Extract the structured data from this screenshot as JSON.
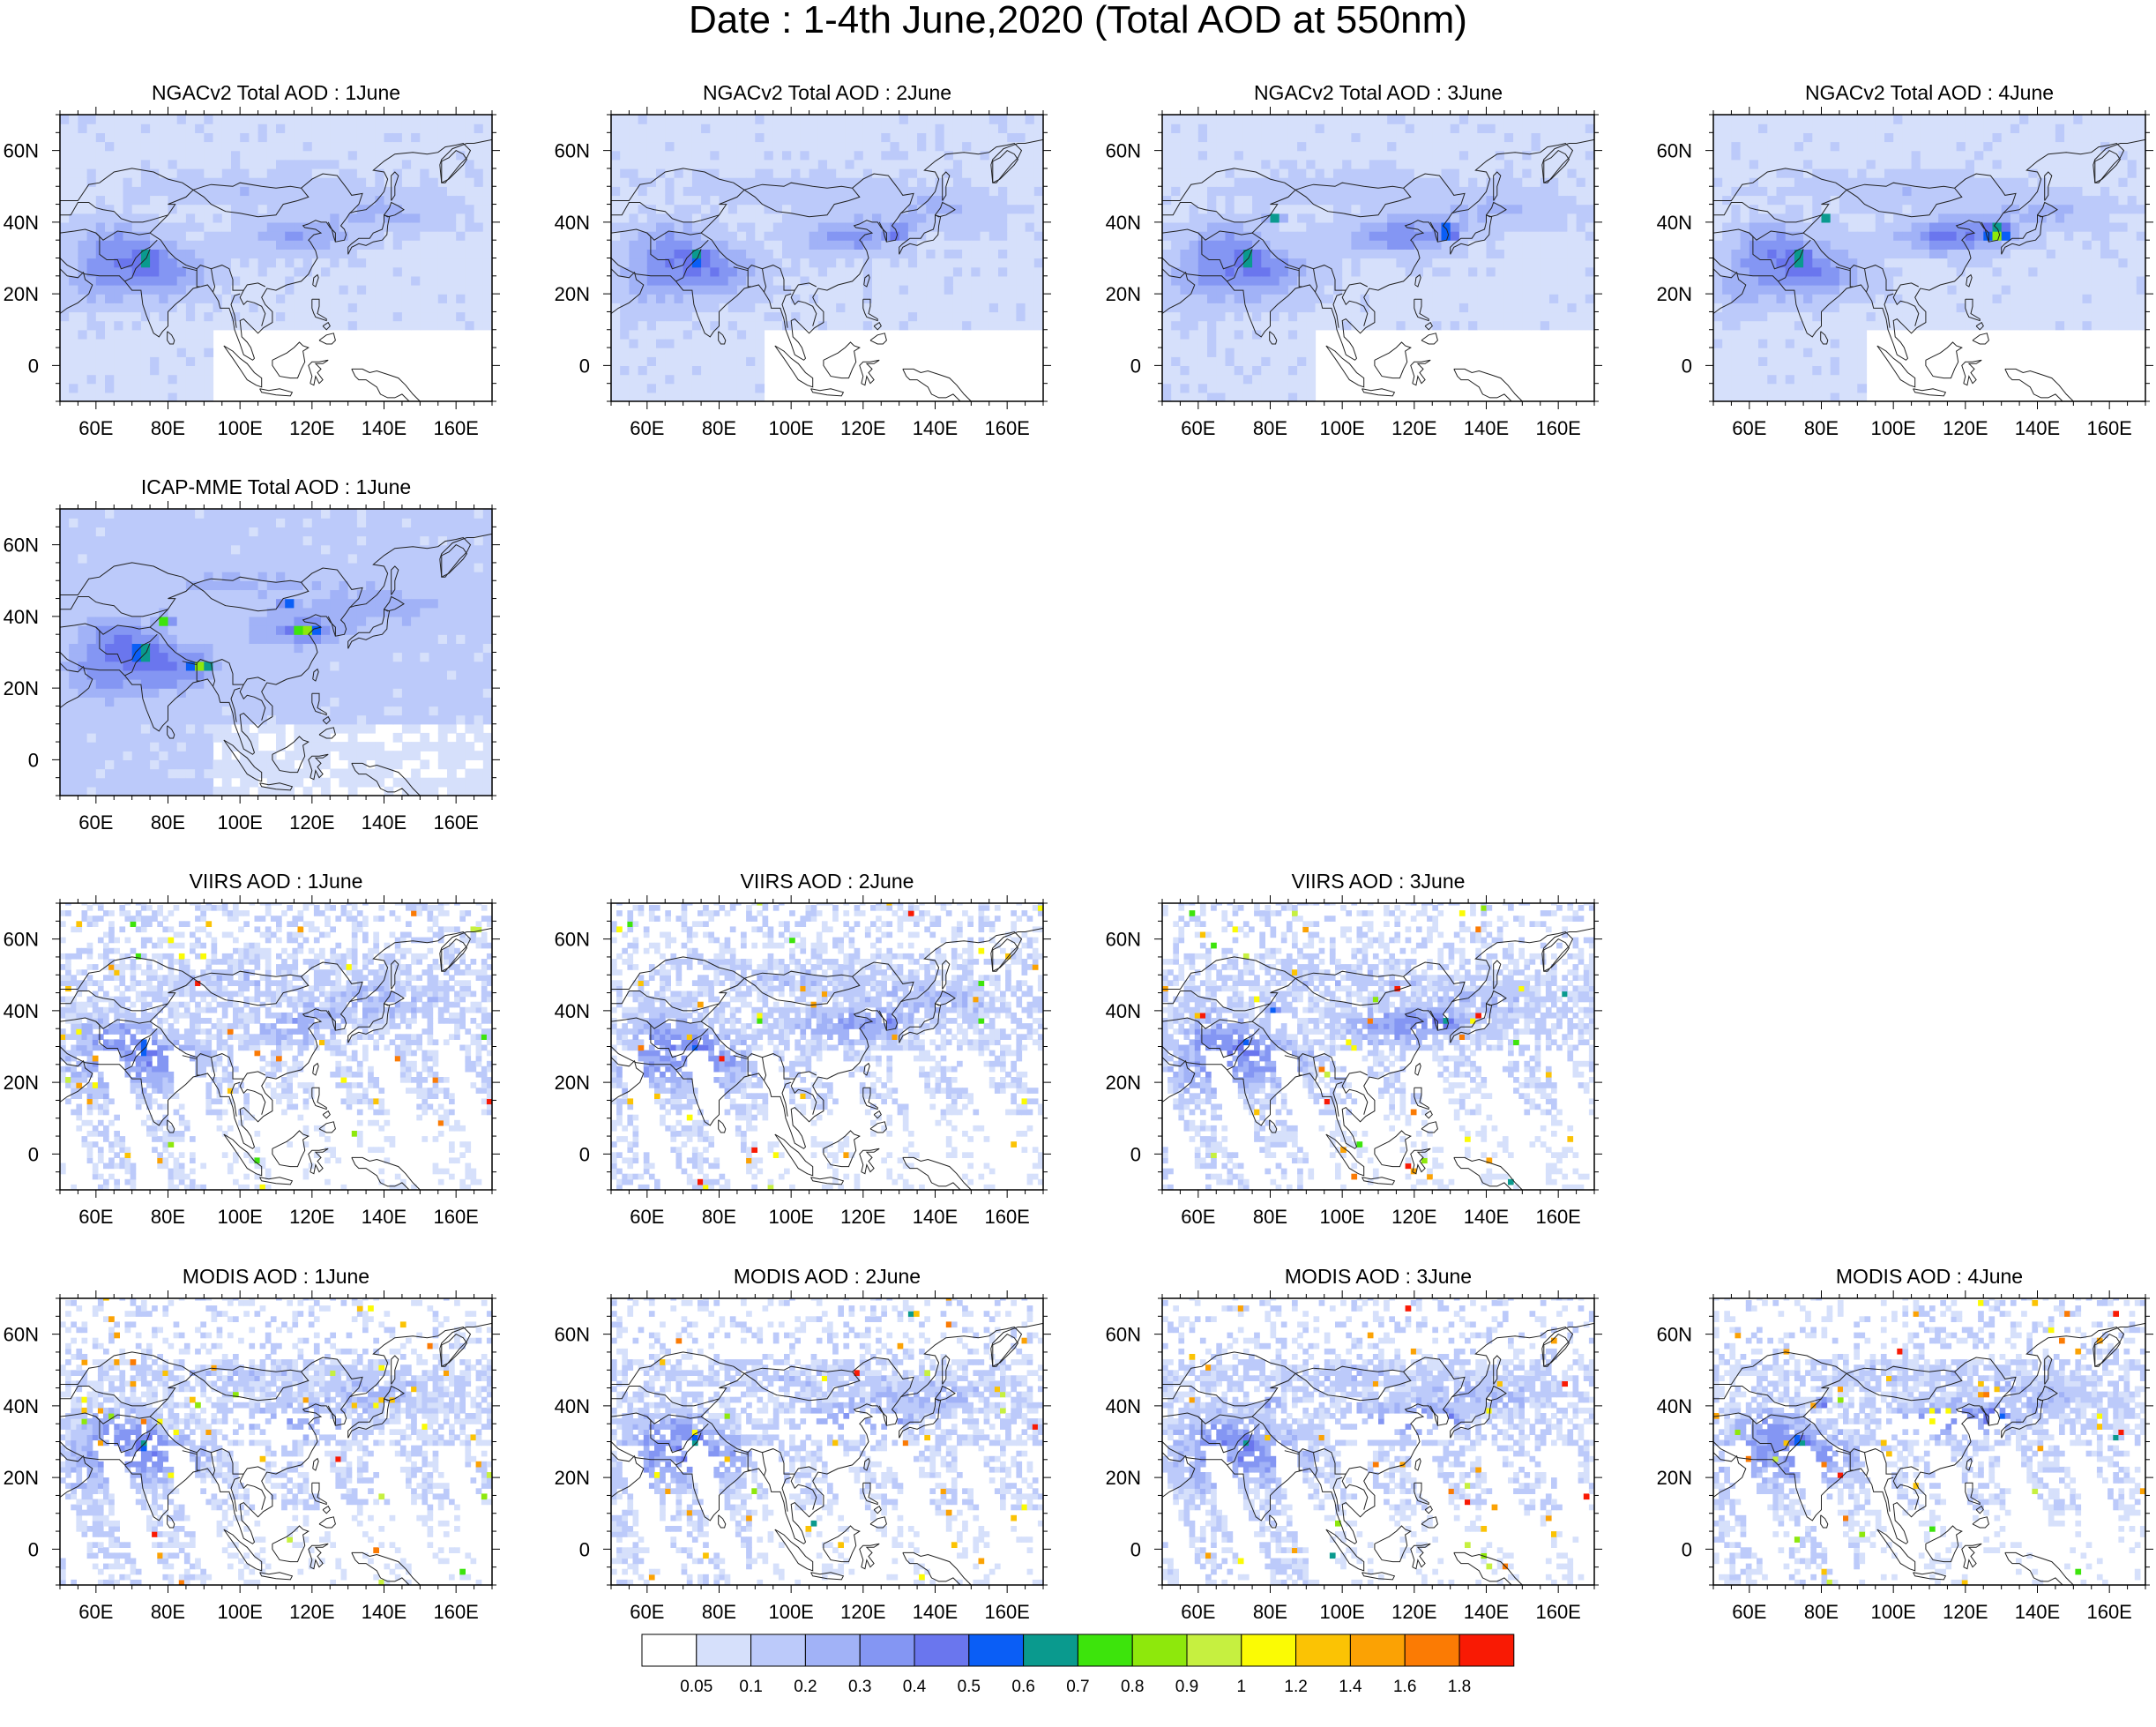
{
  "title": "Date : 1-4th June,2020 (Total AOD at 550nm)",
  "lon_ticks": [
    "60E",
    "80E",
    "100E",
    "120E",
    "140E",
    "160E"
  ],
  "lat_ticks": [
    "60N",
    "40N",
    "20N",
    "0"
  ],
  "lon_tick_values": [
    60,
    80,
    100,
    120,
    140,
    160
  ],
  "lat_tick_values": [
    60,
    40,
    20,
    0
  ],
  "extent": {
    "lon_min": 50,
    "lon_max": 170,
    "lat_min": -10,
    "lat_max": 70
  },
  "panels": [
    {
      "id": "ngac-1",
      "row": 0,
      "col": 0,
      "title": "NGACv2 Total AOD : 1June",
      "source": "model"
    },
    {
      "id": "ngac-2",
      "row": 0,
      "col": 1,
      "title": "NGACv2 Total AOD : 2June",
      "source": "model"
    },
    {
      "id": "ngac-3",
      "row": 0,
      "col": 2,
      "title": "NGACv2 Total AOD : 3June",
      "source": "model"
    },
    {
      "id": "ngac-4",
      "row": 0,
      "col": 3,
      "title": "NGACv2 Total AOD : 4June",
      "source": "model"
    },
    {
      "id": "icap-1",
      "row": 1,
      "col": 0,
      "title": "ICAP-MME Total AOD : 1June",
      "source": "model"
    },
    {
      "id": "viirs-1",
      "row": 2,
      "col": 0,
      "title": "VIIRS AOD : 1June",
      "source": "satellite"
    },
    {
      "id": "viirs-2",
      "row": 2,
      "col": 1,
      "title": "VIIRS AOD : 2June",
      "source": "satellite"
    },
    {
      "id": "viirs-3",
      "row": 2,
      "col": 2,
      "title": "VIIRS AOD : 3June",
      "source": "satellite"
    },
    {
      "id": "modis-1",
      "row": 3,
      "col": 0,
      "title": "MODIS AOD : 1June",
      "source": "satellite"
    },
    {
      "id": "modis-2",
      "row": 3,
      "col": 1,
      "title": "MODIS AOD : 2June",
      "source": "satellite"
    },
    {
      "id": "modis-3",
      "row": 3,
      "col": 2,
      "title": "MODIS AOD : 3June",
      "source": "satellite"
    },
    {
      "id": "modis-4",
      "row": 3,
      "col": 3,
      "title": "MODIS AOD : 4June",
      "source": "satellite"
    }
  ],
  "colorbar": {
    "labels": [
      "0.05",
      "0.1",
      "0.2",
      "0.3",
      "0.4",
      "0.5",
      "0.6",
      "0.7",
      "0.8",
      "0.9",
      "1",
      "1.2",
      "1.4",
      "1.6",
      "1.8"
    ],
    "colors": [
      "#ffffff",
      "#d6e0fb",
      "#bccafa",
      "#a1b2f7",
      "#8496f3",
      "#6a76ee",
      "#0a5ef6",
      "#0a9a8e",
      "#3de40c",
      "#8ee80c",
      "#c6f040",
      "#fbfb04",
      "#fbc304",
      "#fba204",
      "#fb7b04",
      "#f91a04"
    ]
  }
}
